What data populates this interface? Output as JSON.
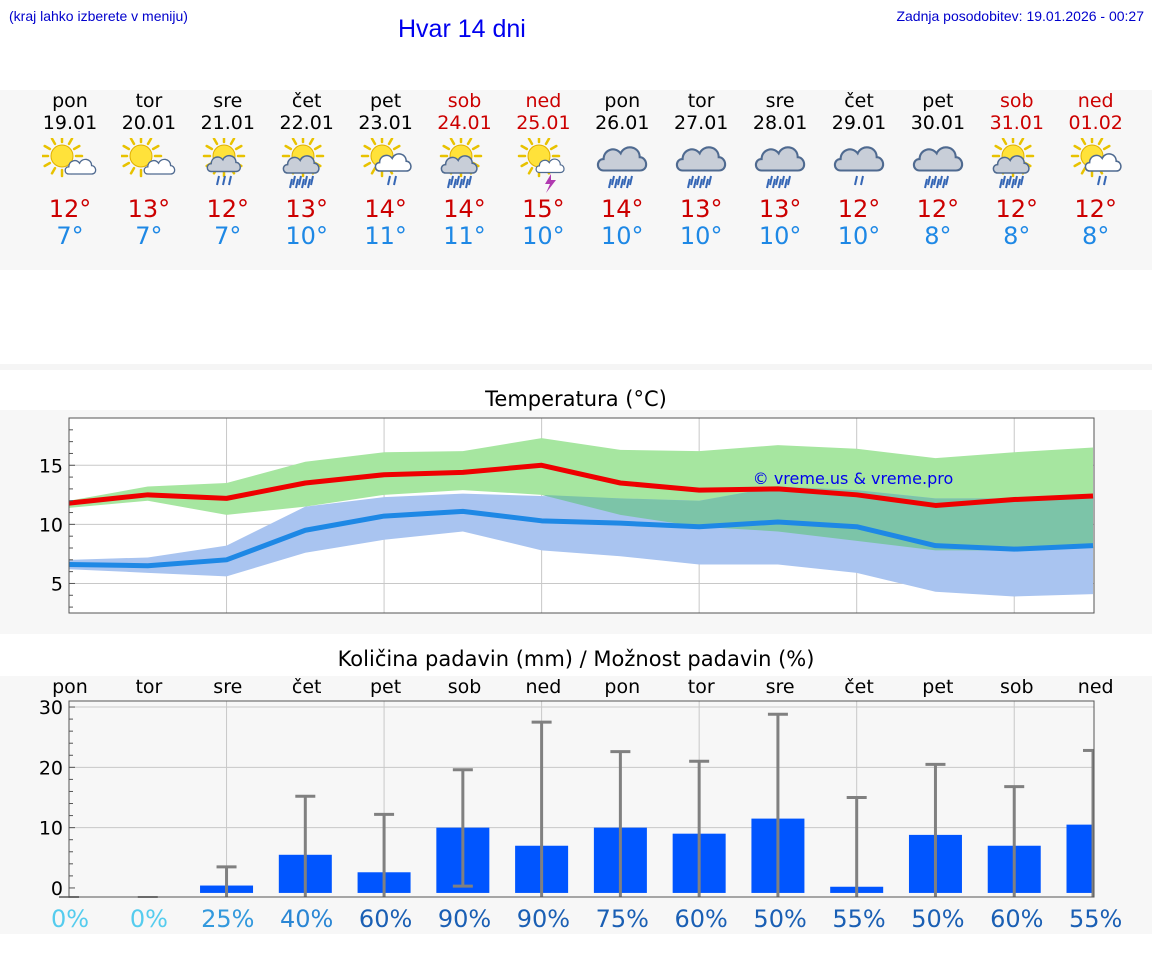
{
  "header": {
    "left_note": "(kraj lahko izberete v meniju)",
    "title": "Hvar 14 dni",
    "updated": "Zadnja posodobitev: 19.01.2026 - 00:27"
  },
  "days": [
    {
      "name": "pon",
      "date": "19.01",
      "hi": "12°",
      "lo": "7°",
      "weekend": false,
      "icon": "sun-cloud-icon"
    },
    {
      "name": "tor",
      "date": "20.01",
      "hi": "13°",
      "lo": "7°",
      "weekend": false,
      "icon": "sun-cloud-icon"
    },
    {
      "name": "sre",
      "date": "21.01",
      "hi": "12°",
      "lo": "7°",
      "weekend": false,
      "icon": "sun-rain-icon"
    },
    {
      "name": "čet",
      "date": "22.01",
      "hi": "13°",
      "lo": "10°",
      "weekend": false,
      "icon": "sun-heavy-rain-icon"
    },
    {
      "name": "pet",
      "date": "23.01",
      "hi": "14°",
      "lo": "11°",
      "weekend": false,
      "icon": "sun-cloud-rain-icon"
    },
    {
      "name": "sob",
      "date": "24.01",
      "hi": "14°",
      "lo": "11°",
      "weekend": true,
      "icon": "sun-heavy-rain-icon"
    },
    {
      "name": "ned",
      "date": "25.01",
      "hi": "15°",
      "lo": "10°",
      "weekend": true,
      "icon": "sun-thunder-icon"
    },
    {
      "name": "pon",
      "date": "26.01",
      "hi": "14°",
      "lo": "10°",
      "weekend": false,
      "icon": "cloud-rain-icon"
    },
    {
      "name": "tor",
      "date": "27.01",
      "hi": "13°",
      "lo": "10°",
      "weekend": false,
      "icon": "cloud-rain-icon"
    },
    {
      "name": "sre",
      "date": "28.01",
      "hi": "13°",
      "lo": "10°",
      "weekend": false,
      "icon": "cloud-rain-icon"
    },
    {
      "name": "čet",
      "date": "29.01",
      "hi": "12°",
      "lo": "10°",
      "weekend": false,
      "icon": "cloud-light-rain-icon"
    },
    {
      "name": "pet",
      "date": "30.01",
      "hi": "12°",
      "lo": "8°",
      "weekend": false,
      "icon": "cloud-rain-icon"
    },
    {
      "name": "sob",
      "date": "31.01",
      "hi": "12°",
      "lo": "8°",
      "weekend": true,
      "icon": "sun-heavy-rain-icon"
    },
    {
      "name": "ned",
      "date": "01.02",
      "hi": "12°",
      "lo": "8°",
      "weekend": true,
      "icon": "sun-cloud-rain-icon"
    }
  ],
  "colors": {
    "max_line": "#ee0000",
    "min_line": "#1e88e5",
    "max_band": "#a6e6a0",
    "min_band": "#a9c4f0",
    "overlap_band": "#7cc4a8",
    "bar": "#0055ff",
    "whisker": "#808080"
  },
  "chart_data": [
    {
      "type": "line",
      "title": "Temperatura (°C)",
      "watermark": "© vreme.us & vreme.pro",
      "x": [
        0,
        1,
        2,
        3,
        4,
        5,
        6,
        7,
        8,
        9,
        10,
        11,
        12,
        13
      ],
      "ylim": [
        2.5,
        19
      ],
      "yticks": [
        5,
        10,
        15
      ],
      "series": [
        {
          "name": "max",
          "values": [
            11.8,
            12.5,
            12.2,
            13.5,
            14.2,
            14.4,
            15.0,
            13.5,
            12.9,
            13.0,
            12.5,
            11.6,
            12.1,
            12.4
          ]
        },
        {
          "name": "min",
          "values": [
            6.6,
            6.5,
            7.0,
            9.5,
            10.7,
            11.1,
            10.3,
            10.1,
            9.8,
            10.2,
            9.8,
            8.2,
            7.9,
            8.2
          ]
        }
      ],
      "bands": [
        {
          "name": "max-range",
          "upper": [
            12.0,
            13.2,
            13.5,
            15.3,
            16.1,
            16.2,
            17.3,
            16.3,
            16.2,
            16.7,
            16.4,
            15.6,
            16.1,
            16.5
          ],
          "lower": [
            11.4,
            12.0,
            10.8,
            11.5,
            12.5,
            12.9,
            12.5,
            10.8,
            9.8,
            9.4,
            8.6,
            7.8,
            7.8,
            8.2
          ]
        },
        {
          "name": "min-range",
          "upper": [
            7.0,
            7.2,
            8.2,
            11.5,
            12.3,
            12.6,
            12.4,
            12.2,
            12.0,
            13.2,
            12.9,
            12.2,
            12.2,
            12.2
          ],
          "lower": [
            6.2,
            5.9,
            5.6,
            7.6,
            8.7,
            9.4,
            7.8,
            7.3,
            6.6,
            6.6,
            5.9,
            4.3,
            3.9,
            4.1
          ]
        }
      ]
    },
    {
      "type": "bar",
      "title": "Količina padavin (mm) / Možnost padavin (%)",
      "categories": [
        "pon",
        "tor",
        "sre",
        "čet",
        "pet",
        "sob",
        "ned",
        "pon",
        "tor",
        "sre",
        "čet",
        "pet",
        "sob",
        "ned"
      ],
      "ylim": [
        -1.5,
        31
      ],
      "yticks": [
        0,
        10,
        20,
        30
      ],
      "values": [
        0,
        0,
        0.4,
        5.5,
        2.6,
        10.0,
        7.0,
        10.0,
        9.0,
        11.5,
        0.2,
        8.8,
        7.0,
        10.5
      ],
      "err_low": [
        0,
        0,
        0,
        0,
        0,
        0.3,
        0,
        0,
        0,
        0,
        0,
        0,
        0,
        0
      ],
      "err_high": [
        0,
        0,
        3.5,
        15.2,
        12.2,
        19.6,
        27.5,
        22.6,
        21.0,
        28.8,
        15.0,
        20.5,
        16.8,
        22.8
      ],
      "probability": [
        "0%",
        "0%",
        "25%",
        "40%",
        "60%",
        "90%",
        "90%",
        "75%",
        "60%",
        "50%",
        "55%",
        "50%",
        "60%",
        "55%"
      ],
      "probability_colors": [
        "#55ccee",
        "#55ccee",
        "#3399dd",
        "#2a86d4",
        "#1a5fb4",
        "#1a5fb4",
        "#1a5fb4",
        "#1a5fb4",
        "#1a5fb4",
        "#1a5fb4",
        "#1a5fb4",
        "#1a5fb4",
        "#1a5fb4",
        "#1a5fb4"
      ]
    }
  ]
}
